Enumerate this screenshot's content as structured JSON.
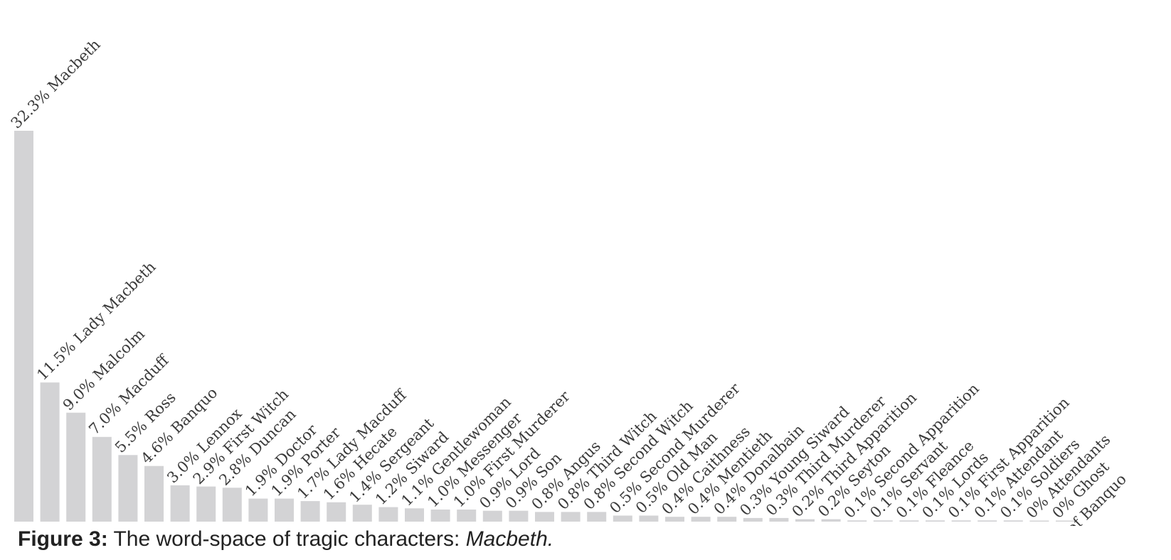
{
  "chart_data": {
    "type": "bar",
    "title": "",
    "xlabel": "",
    "ylabel": "",
    "ylim": [
      0,
      32.3
    ],
    "unit": "%",
    "grid": false,
    "legend": "none",
    "colors": {
      "bar": "#d3d3d5",
      "text": "#3a3a3a"
    },
    "categories": [
      "Macbeth",
      "Lady Macbeth",
      "Malcolm",
      "Macduff",
      "Ross",
      "Banquo",
      "Lennox",
      "First Witch",
      "Duncan",
      "Doctor",
      "Porter",
      "Lady Macduff",
      "Hecate",
      "Sergeant",
      "Siward",
      "Gentlewoman",
      "Messenger",
      "First Murderer",
      "Lord",
      "Son",
      "Angus",
      "Third Witch",
      "Second Witch",
      "Second Murderer",
      "Old Man",
      "Caithness",
      "Mentieth",
      "Donalbain",
      "Young Siward",
      "Third Murderer",
      "Third Apparition",
      "Seyton",
      "Second Apparition",
      "Servant",
      "Fleance",
      "Lords",
      "First Apparition",
      "Attendant",
      "Soldiers",
      "Attendants",
      "Ghost of Banquo"
    ],
    "values": [
      32.3,
      11.5,
      9.0,
      7.0,
      5.5,
      4.6,
      3.0,
      2.9,
      2.8,
      1.9,
      1.9,
      1.7,
      1.6,
      1.4,
      1.2,
      1.1,
      1.0,
      1.0,
      0.9,
      0.9,
      0.8,
      0.8,
      0.8,
      0.5,
      0.5,
      0.4,
      0.4,
      0.4,
      0.3,
      0.3,
      0.2,
      0.2,
      0.1,
      0.1,
      0.1,
      0.1,
      0.1,
      0.1,
      0.1,
      0,
      0
    ],
    "labels": [
      "32.3% Macbeth",
      "11.5% Lady Macbeth",
      "9.0% Malcolm",
      "7.0% Macduff",
      "5.5% Ross",
      "4.6% Banquo",
      "3.0% Lennox",
      "2.9% First Witch",
      "2.8% Duncan",
      "1.9% Doctor",
      "1.9% Porter",
      "1.7% Lady Macduff",
      "1.6% Hecate",
      "1.4% Sergeant",
      "1.2% Siward",
      "1.1% Gentlewoman",
      "1.0% Messenger",
      "1.0% First Murderer",
      "0.9% Lord",
      "0.9% Son",
      "0.8% Angus",
      "0.8% Third Witch",
      "0.8% Second Witch",
      "0.5% Second Murderer",
      "0.5% Old Man",
      "0.4% Caithness",
      "0.4% Mentieth",
      "0.4% Donalbain",
      "0.3% Young Siward",
      "0.3% Third Murderer",
      "0.2% Third Apparition",
      "0.2% Seyton",
      "0.1% Second Apparition",
      "0.1% Servant",
      "0.1% Fleance",
      "0.1% Lords",
      "0.1% First Apparition",
      "0.1% Attendant",
      "0.1% Soldiers",
      "0% Attendants",
      "0% Ghost"
    ],
    "extra_label": "of Banquo"
  },
  "caption": {
    "bold": "Figure 3:",
    "text": " The word-space of tragic characters: ",
    "italic": "Macbeth."
  }
}
